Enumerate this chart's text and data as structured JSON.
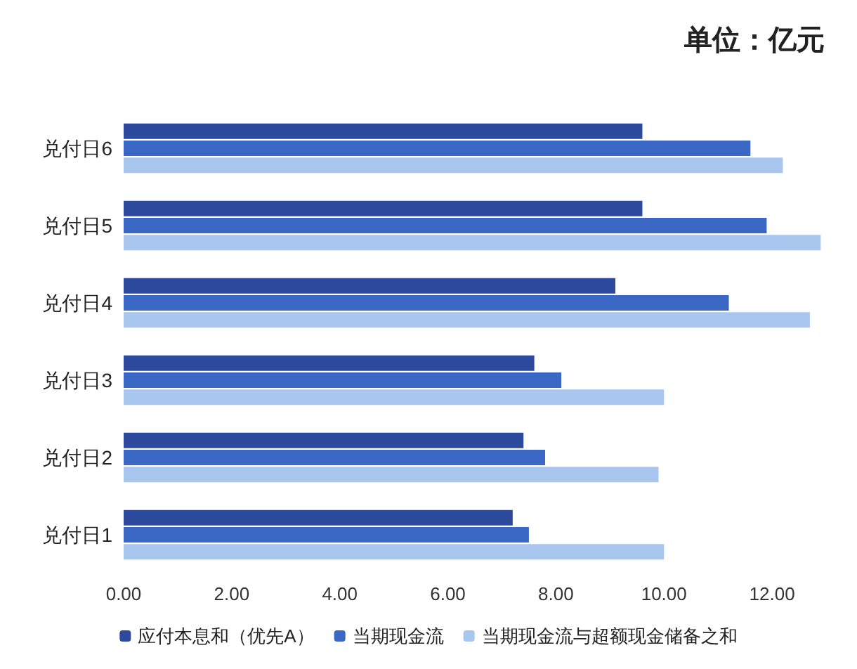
{
  "chart_data": {
    "type": "bar",
    "orientation": "horizontal",
    "title": "单位：亿元",
    "categories": [
      "兑付日6",
      "兑付日5",
      "兑付日4",
      "兑付日3",
      "兑付日2",
      "兑付日1"
    ],
    "series": [
      {
        "name": "应付本息和（优先A）",
        "color": "#2e4a9e",
        "values": [
          9.6,
          9.6,
          9.1,
          7.6,
          7.4,
          7.2
        ]
      },
      {
        "name": "当期现金流",
        "color": "#3a66c4",
        "values": [
          11.6,
          11.9,
          11.2,
          8.1,
          7.8,
          7.5
        ]
      },
      {
        "name": "当期现金流与超额现金储备之和",
        "color": "#a9c6ee",
        "values": [
          12.2,
          12.9,
          12.7,
          10.0,
          9.9,
          10.0
        ]
      }
    ],
    "xlim": [
      0,
      13
    ],
    "xticks": [
      {
        "value": 0,
        "label": "0.00"
      },
      {
        "value": 2,
        "label": "2.00"
      },
      {
        "value": 4,
        "label": "4.00"
      },
      {
        "value": 6,
        "label": "6.00"
      },
      {
        "value": 8,
        "label": "8.00"
      },
      {
        "value": 10,
        "label": "10.00"
      },
      {
        "value": 12,
        "label": "12.00"
      }
    ],
    "grid": false,
    "legend": "bottom"
  }
}
